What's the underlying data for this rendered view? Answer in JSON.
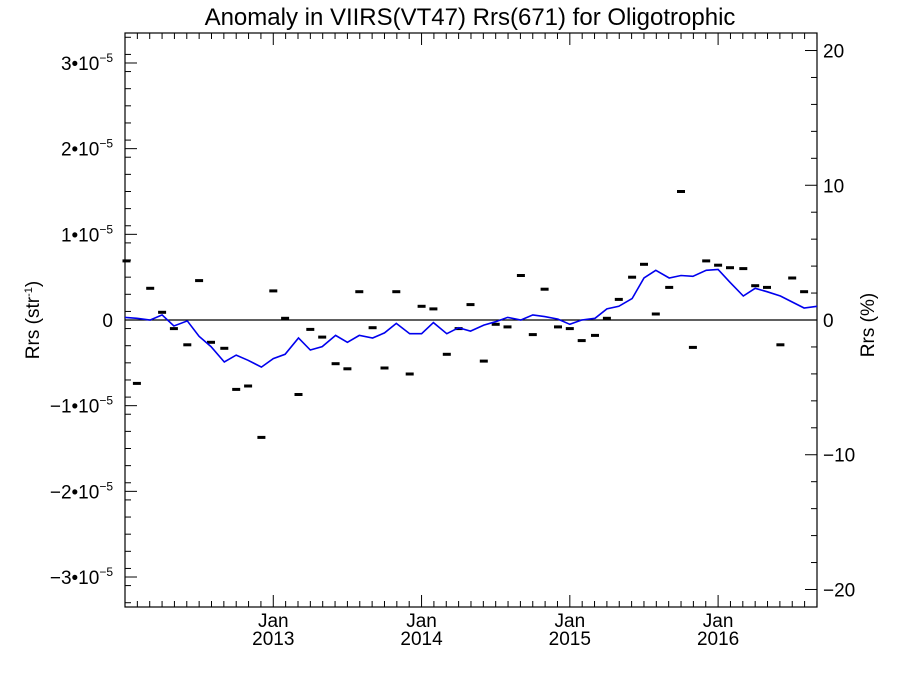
{
  "chart_data": {
    "type": "line",
    "title": "Anomaly in VIIRS(VT47) Rrs(671) for Oligotrophic",
    "ylabel_left": {
      "text": "Rrs (str",
      "sup": "-1",
      "tail": ")"
    },
    "ylabel_right": "Rrs (%)",
    "xlim": [
      2012.0,
      2016.667
    ],
    "ylim": [
      -3.35e-05,
      3.35e-05
    ],
    "y2lim": [
      -21.3,
      21.3
    ],
    "y_ticks": [
      {
        "value": 3e-05,
        "mant": "3•10",
        "exp": "−5"
      },
      {
        "value": 2e-05,
        "mant": "2•10",
        "exp": "−5"
      },
      {
        "value": 1e-05,
        "mant": "1•10",
        "exp": "−5"
      },
      {
        "value": 0,
        "mant": "0",
        "exp": ""
      },
      {
        "value": -1e-05,
        "mant": "−1•10",
        "exp": "−5"
      },
      {
        "value": -2e-05,
        "mant": "−2•10",
        "exp": "−5"
      },
      {
        "value": -3e-05,
        "mant": "−3•10",
        "exp": "−5"
      }
    ],
    "y2_ticks": [
      {
        "value": 20,
        "label": "20"
      },
      {
        "value": 10,
        "label": "10"
      },
      {
        "value": 0,
        "label": "0"
      },
      {
        "value": -10,
        "label": "−10"
      },
      {
        "value": -20,
        "label": "−20"
      }
    ],
    "x_ticks": [
      {
        "value": 2013.0,
        "month": "Jan",
        "year": "2013"
      },
      {
        "value": 2014.0,
        "month": "Jan",
        "year": "2014"
      },
      {
        "value": 2015.0,
        "month": "Jan",
        "year": "2015"
      },
      {
        "value": 2016.0,
        "month": "Jan",
        "year": "2016"
      }
    ],
    "zero_line": true,
    "grid": false,
    "legend": "none",
    "series": [
      {
        "style": "markers",
        "color": "#000000",
        "x": [
          2012.01,
          2012.08,
          2012.17,
          2012.25,
          2012.33,
          2012.42,
          2012.5,
          2012.58,
          2012.67,
          2012.75,
          2012.83,
          2012.92,
          2013.0,
          2013.08,
          2013.17,
          2013.25,
          2013.33,
          2013.42,
          2013.5,
          2013.58,
          2013.67,
          2013.75,
          2013.83,
          2013.92,
          2014.0,
          2014.08,
          2014.17,
          2014.25,
          2014.33,
          2014.42,
          2014.5,
          2014.58,
          2014.67,
          2014.75,
          2014.83,
          2014.92,
          2015.0,
          2015.08,
          2015.17,
          2015.25,
          2015.33,
          2015.42,
          2015.5,
          2015.58,
          2015.67,
          2015.75,
          2015.83,
          2015.92,
          2016.0,
          2016.08,
          2016.17,
          2016.25,
          2016.33,
          2016.42,
          2016.5,
          2016.58
        ],
        "y": [
          6.9e-06,
          -7.4e-06,
          3.7e-06,
          9e-07,
          -1e-06,
          -2.9e-06,
          4.6e-06,
          -2.6e-06,
          -3.3e-06,
          -8.1e-06,
          -7.7e-06,
          -1.37e-05,
          3.4e-06,
          2e-07,
          -8.7e-06,
          -1.1e-06,
          -2e-06,
          -5.1e-06,
          -5.7e-06,
          3.3e-06,
          -9e-07,
          -5.6e-06,
          3.3e-06,
          -6.3e-06,
          1.6e-06,
          1.3e-06,
          -4e-06,
          -1e-06,
          1.8e-06,
          -4.8e-06,
          -5e-07,
          -8e-07,
          5.2e-06,
          -1.7e-06,
          3.6e-06,
          -8e-07,
          -1e-06,
          -2.4e-06,
          -1.8e-06,
          2e-07,
          2.4e-06,
          5e-06,
          6.5e-06,
          7e-07,
          3.8e-06,
          1.5e-05,
          -3.2e-06,
          6.9e-06,
          6.4e-06,
          6.1e-06,
          6e-06,
          4e-06,
          3.8e-06,
          -2.9e-06,
          4.9e-06,
          3.3e-06
        ]
      },
      {
        "style": "line",
        "color": "#0000ee",
        "x": [
          2012.0,
          2012.08,
          2012.17,
          2012.25,
          2012.33,
          2012.42,
          2012.5,
          2012.58,
          2012.67,
          2012.75,
          2012.83,
          2012.92,
          2013.0,
          2013.08,
          2013.17,
          2013.25,
          2013.33,
          2013.42,
          2013.5,
          2013.58,
          2013.67,
          2013.75,
          2013.83,
          2013.92,
          2014.0,
          2014.08,
          2014.17,
          2014.25,
          2014.33,
          2014.42,
          2014.5,
          2014.58,
          2014.67,
          2014.75,
          2014.83,
          2014.92,
          2015.0,
          2015.08,
          2015.17,
          2015.25,
          2015.33,
          2015.42,
          2015.5,
          2015.58,
          2015.67,
          2015.75,
          2015.83,
          2015.92,
          2016.0,
          2016.08,
          2016.17,
          2016.25,
          2016.33,
          2016.42,
          2016.5,
          2016.58,
          2016.667
        ],
        "y": [
          3e-07,
          2e-07,
          0.0,
          6e-07,
          -7e-07,
          -1e-07,
          -1.9e-06,
          -3.1e-06,
          -4.9e-06,
          -4.1e-06,
          -4.7e-06,
          -5.5e-06,
          -4.5e-06,
          -4e-06,
          -2.1e-06,
          -3.5e-06,
          -3.1e-06,
          -1.8e-06,
          -2.6e-06,
          -1.8e-06,
          -2.1e-06,
          -1.5e-06,
          -4e-07,
          -1.6e-06,
          -1.6e-06,
          -3e-07,
          -1.6e-06,
          -9e-07,
          -1.3e-06,
          -6e-07,
          -2e-07,
          3e-07,
          0.0,
          6e-07,
          4e-07,
          1e-07,
          -5e-07,
          0.0,
          2e-07,
          1.3e-06,
          1.6e-06,
          2.5e-06,
          4.9e-06,
          5.8e-06,
          4.9e-06,
          5.2e-06,
          5.1e-06,
          5.8e-06,
          5.9e-06,
          4.4e-06,
          2.8e-06,
          3.7e-06,
          3.3e-06,
          2.8e-06,
          2.1e-06,
          1.4e-06,
          1.6e-06
        ]
      }
    ]
  }
}
